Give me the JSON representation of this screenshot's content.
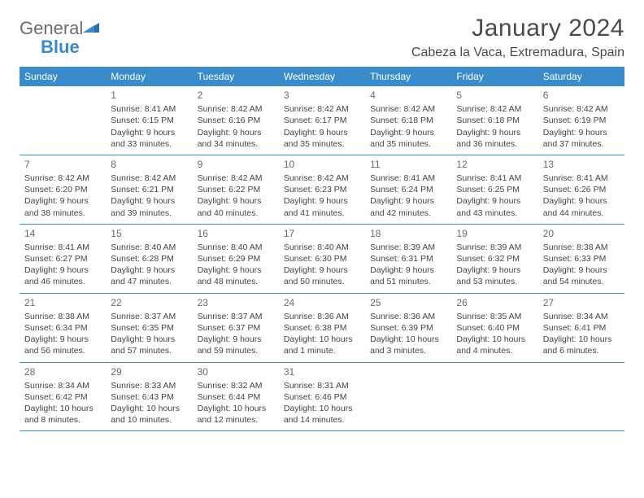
{
  "logo": {
    "word1": "General",
    "word2": "Blue"
  },
  "title": "January 2024",
  "location": "Cabeza la Vaca, Extremadura, Spain",
  "header_bg": "#3a8bc9",
  "divider_color": "#3a8bc9",
  "weekdays": [
    "Sunday",
    "Monday",
    "Tuesday",
    "Wednesday",
    "Thursday",
    "Friday",
    "Saturday"
  ],
  "weeks": [
    [
      {
        "n": "",
        "sr": "",
        "ss": "",
        "dl1": "",
        "dl2": ""
      },
      {
        "n": "1",
        "sr": "Sunrise: 8:41 AM",
        "ss": "Sunset: 6:15 PM",
        "dl1": "Daylight: 9 hours",
        "dl2": "and 33 minutes."
      },
      {
        "n": "2",
        "sr": "Sunrise: 8:42 AM",
        "ss": "Sunset: 6:16 PM",
        "dl1": "Daylight: 9 hours",
        "dl2": "and 34 minutes."
      },
      {
        "n": "3",
        "sr": "Sunrise: 8:42 AM",
        "ss": "Sunset: 6:17 PM",
        "dl1": "Daylight: 9 hours",
        "dl2": "and 35 minutes."
      },
      {
        "n": "4",
        "sr": "Sunrise: 8:42 AM",
        "ss": "Sunset: 6:18 PM",
        "dl1": "Daylight: 9 hours",
        "dl2": "and 35 minutes."
      },
      {
        "n": "5",
        "sr": "Sunrise: 8:42 AM",
        "ss": "Sunset: 6:18 PM",
        "dl1": "Daylight: 9 hours",
        "dl2": "and 36 minutes."
      },
      {
        "n": "6",
        "sr": "Sunrise: 8:42 AM",
        "ss": "Sunset: 6:19 PM",
        "dl1": "Daylight: 9 hours",
        "dl2": "and 37 minutes."
      }
    ],
    [
      {
        "n": "7",
        "sr": "Sunrise: 8:42 AM",
        "ss": "Sunset: 6:20 PM",
        "dl1": "Daylight: 9 hours",
        "dl2": "and 38 minutes."
      },
      {
        "n": "8",
        "sr": "Sunrise: 8:42 AM",
        "ss": "Sunset: 6:21 PM",
        "dl1": "Daylight: 9 hours",
        "dl2": "and 39 minutes."
      },
      {
        "n": "9",
        "sr": "Sunrise: 8:42 AM",
        "ss": "Sunset: 6:22 PM",
        "dl1": "Daylight: 9 hours",
        "dl2": "and 40 minutes."
      },
      {
        "n": "10",
        "sr": "Sunrise: 8:42 AM",
        "ss": "Sunset: 6:23 PM",
        "dl1": "Daylight: 9 hours",
        "dl2": "and 41 minutes."
      },
      {
        "n": "11",
        "sr": "Sunrise: 8:41 AM",
        "ss": "Sunset: 6:24 PM",
        "dl1": "Daylight: 9 hours",
        "dl2": "and 42 minutes."
      },
      {
        "n": "12",
        "sr": "Sunrise: 8:41 AM",
        "ss": "Sunset: 6:25 PM",
        "dl1": "Daylight: 9 hours",
        "dl2": "and 43 minutes."
      },
      {
        "n": "13",
        "sr": "Sunrise: 8:41 AM",
        "ss": "Sunset: 6:26 PM",
        "dl1": "Daylight: 9 hours",
        "dl2": "and 44 minutes."
      }
    ],
    [
      {
        "n": "14",
        "sr": "Sunrise: 8:41 AM",
        "ss": "Sunset: 6:27 PM",
        "dl1": "Daylight: 9 hours",
        "dl2": "and 46 minutes."
      },
      {
        "n": "15",
        "sr": "Sunrise: 8:40 AM",
        "ss": "Sunset: 6:28 PM",
        "dl1": "Daylight: 9 hours",
        "dl2": "and 47 minutes."
      },
      {
        "n": "16",
        "sr": "Sunrise: 8:40 AM",
        "ss": "Sunset: 6:29 PM",
        "dl1": "Daylight: 9 hours",
        "dl2": "and 48 minutes."
      },
      {
        "n": "17",
        "sr": "Sunrise: 8:40 AM",
        "ss": "Sunset: 6:30 PM",
        "dl1": "Daylight: 9 hours",
        "dl2": "and 50 minutes."
      },
      {
        "n": "18",
        "sr": "Sunrise: 8:39 AM",
        "ss": "Sunset: 6:31 PM",
        "dl1": "Daylight: 9 hours",
        "dl2": "and 51 minutes."
      },
      {
        "n": "19",
        "sr": "Sunrise: 8:39 AM",
        "ss": "Sunset: 6:32 PM",
        "dl1": "Daylight: 9 hours",
        "dl2": "and 53 minutes."
      },
      {
        "n": "20",
        "sr": "Sunrise: 8:38 AM",
        "ss": "Sunset: 6:33 PM",
        "dl1": "Daylight: 9 hours",
        "dl2": "and 54 minutes."
      }
    ],
    [
      {
        "n": "21",
        "sr": "Sunrise: 8:38 AM",
        "ss": "Sunset: 6:34 PM",
        "dl1": "Daylight: 9 hours",
        "dl2": "and 56 minutes."
      },
      {
        "n": "22",
        "sr": "Sunrise: 8:37 AM",
        "ss": "Sunset: 6:35 PM",
        "dl1": "Daylight: 9 hours",
        "dl2": "and 57 minutes."
      },
      {
        "n": "23",
        "sr": "Sunrise: 8:37 AM",
        "ss": "Sunset: 6:37 PM",
        "dl1": "Daylight: 9 hours",
        "dl2": "and 59 minutes."
      },
      {
        "n": "24",
        "sr": "Sunrise: 8:36 AM",
        "ss": "Sunset: 6:38 PM",
        "dl1": "Daylight: 10 hours",
        "dl2": "and 1 minute."
      },
      {
        "n": "25",
        "sr": "Sunrise: 8:36 AM",
        "ss": "Sunset: 6:39 PM",
        "dl1": "Daylight: 10 hours",
        "dl2": "and 3 minutes."
      },
      {
        "n": "26",
        "sr": "Sunrise: 8:35 AM",
        "ss": "Sunset: 6:40 PM",
        "dl1": "Daylight: 10 hours",
        "dl2": "and 4 minutes."
      },
      {
        "n": "27",
        "sr": "Sunrise: 8:34 AM",
        "ss": "Sunset: 6:41 PM",
        "dl1": "Daylight: 10 hours",
        "dl2": "and 6 minutes."
      }
    ],
    [
      {
        "n": "28",
        "sr": "Sunrise: 8:34 AM",
        "ss": "Sunset: 6:42 PM",
        "dl1": "Daylight: 10 hours",
        "dl2": "and 8 minutes."
      },
      {
        "n": "29",
        "sr": "Sunrise: 8:33 AM",
        "ss": "Sunset: 6:43 PM",
        "dl1": "Daylight: 10 hours",
        "dl2": "and 10 minutes."
      },
      {
        "n": "30",
        "sr": "Sunrise: 8:32 AM",
        "ss": "Sunset: 6:44 PM",
        "dl1": "Daylight: 10 hours",
        "dl2": "and 12 minutes."
      },
      {
        "n": "31",
        "sr": "Sunrise: 8:31 AM",
        "ss": "Sunset: 6:46 PM",
        "dl1": "Daylight: 10 hours",
        "dl2": "and 14 minutes."
      },
      {
        "n": "",
        "sr": "",
        "ss": "",
        "dl1": "",
        "dl2": ""
      },
      {
        "n": "",
        "sr": "",
        "ss": "",
        "dl1": "",
        "dl2": ""
      },
      {
        "n": "",
        "sr": "",
        "ss": "",
        "dl1": "",
        "dl2": ""
      }
    ]
  ]
}
